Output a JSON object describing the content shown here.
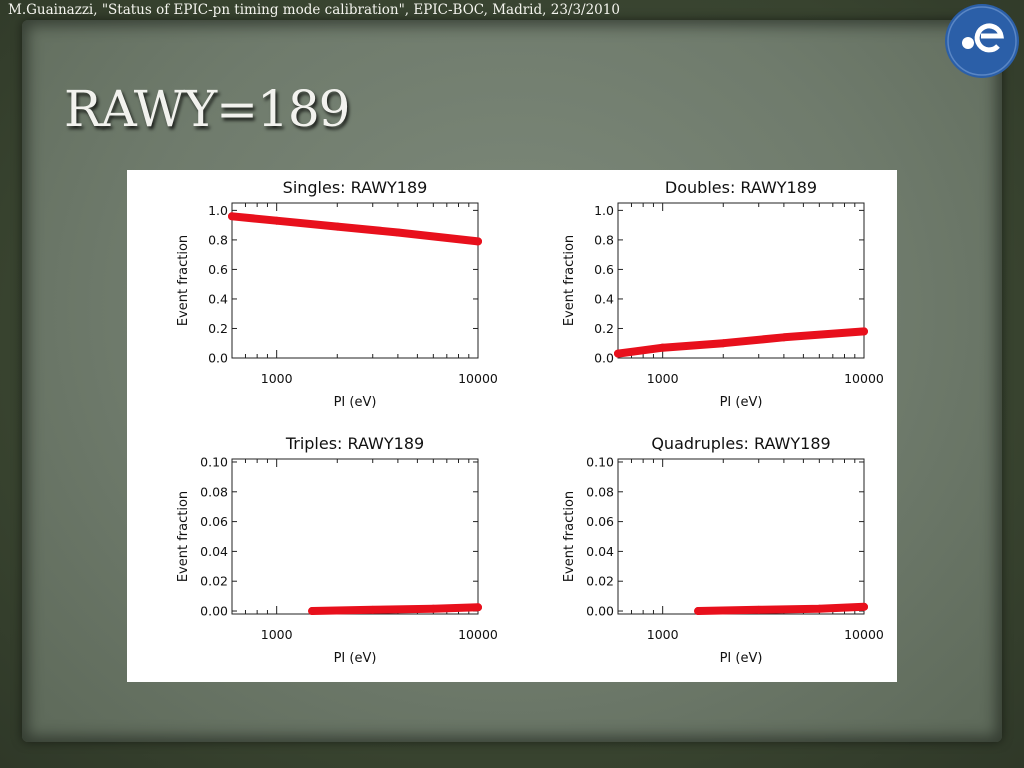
{
  "header": {
    "citation": "M.Guainazzi, \"Status of EPIC-pn timing mode calibration\", EPIC-BOC, Madrid, 23/3/2010"
  },
  "slide": {
    "title": "RAWY=189"
  },
  "logo": {
    "icon": "esa-logo-icon",
    "color": "#2b5fa8"
  },
  "colors": {
    "series": "#e8101c",
    "background": "#ffffff"
  },
  "chart_data": [
    {
      "type": "scatter",
      "title": "Singles: RAWY189",
      "xlabel": "PI (eV)",
      "ylabel": "Event fraction",
      "xscale": "log",
      "xlim": [
        600,
        10000
      ],
      "ylim": [
        0,
        1.05
      ],
      "xticks": [
        "1000",
        "10000"
      ],
      "yticks": [
        "0.0",
        "0.2",
        "0.4",
        "0.6",
        "0.8",
        "1.0"
      ],
      "series": [
        {
          "x": [
            600,
            1000,
            2000,
            4000,
            10000
          ],
          "y": [
            0.96,
            0.93,
            0.89,
            0.85,
            0.79
          ]
        }
      ]
    },
    {
      "type": "scatter",
      "title": "Doubles: RAWY189",
      "xlabel": "PI (eV)",
      "ylabel": "Event fraction",
      "xscale": "log",
      "xlim": [
        600,
        10000
      ],
      "ylim": [
        0,
        1.05
      ],
      "xticks": [
        "1000",
        "10000"
      ],
      "yticks": [
        "0.0",
        "0.2",
        "0.4",
        "0.6",
        "0.8",
        "1.0"
      ],
      "series": [
        {
          "x": [
            600,
            1000,
            2000,
            4000,
            10000
          ],
          "y": [
            0.03,
            0.07,
            0.1,
            0.14,
            0.18
          ]
        }
      ]
    },
    {
      "type": "scatter",
      "title": "Triples: RAWY189",
      "xlabel": "PI (eV)",
      "ylabel": "Event fraction",
      "xscale": "log",
      "xlim": [
        600,
        10000
      ],
      "ylim": [
        -0.002,
        0.102
      ],
      "xticks": [
        "1000",
        "10000"
      ],
      "yticks": [
        "0.00",
        "0.02",
        "0.04",
        "0.06",
        "0.08",
        "0.10"
      ],
      "series": [
        {
          "x": [
            1500,
            3000,
            6000,
            10000
          ],
          "y": [
            0.0,
            0.0008,
            0.0015,
            0.0025
          ]
        }
      ]
    },
    {
      "type": "scatter",
      "title": "Quadruples: RAWY189",
      "xlabel": "PI (eV)",
      "ylabel": "Event fraction",
      "xscale": "log",
      "xlim": [
        600,
        10000
      ],
      "ylim": [
        -0.002,
        0.102
      ],
      "xticks": [
        "1000",
        "10000"
      ],
      "yticks": [
        "0.00",
        "0.02",
        "0.04",
        "0.06",
        "0.08",
        "0.10"
      ],
      "series": [
        {
          "x": [
            1500,
            3000,
            6000,
            10000
          ],
          "y": [
            0.0,
            0.0008,
            0.0015,
            0.0028
          ]
        }
      ]
    }
  ]
}
